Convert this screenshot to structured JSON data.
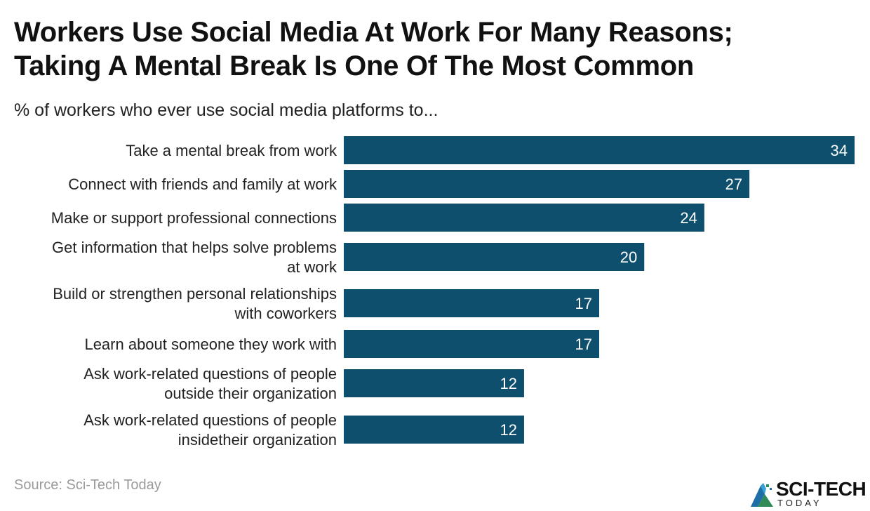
{
  "header": {
    "title_line1": "Workers Use Social Media At Work For Many Reasons;",
    "title_line2": "Taking A Mental Break Is One Of The Most Common",
    "subtitle": "% of workers who ever use social media platforms to..."
  },
  "footer": {
    "source": "Source: Sci-Tech Today",
    "logo_text": "SCI-TECH",
    "logo_subtext": "TODAY"
  },
  "colors": {
    "bar": "#0d4f6c",
    "value_text": "#ffffff",
    "label_text": "#222222"
  },
  "chart_data": {
    "type": "bar",
    "orientation": "horizontal",
    "title": "Workers Use Social Media At Work For Many Reasons; Taking A Mental Break Is One Of The Most Common",
    "subtitle": "% of workers who ever use social media platforms to...",
    "categories": [
      [
        "Take a mental break from work"
      ],
      [
        "Connect with friends and family at work"
      ],
      [
        "Make or support professional connections"
      ],
      [
        "Get information that helps solve problems",
        "at work"
      ],
      [
        "Build or strengthen personal relationships",
        "with coworkers"
      ],
      [
        "Learn about someone they work with"
      ],
      [
        "Ask work-related questions of people",
        "outside their organization"
      ],
      [
        "Ask work-related questions of people",
        "insidetheir organization"
      ]
    ],
    "values": [
      34,
      27,
      24,
      20,
      17,
      17,
      12,
      12
    ],
    "xlim": [
      0,
      34
    ],
    "grid": false,
    "legend": "none"
  }
}
